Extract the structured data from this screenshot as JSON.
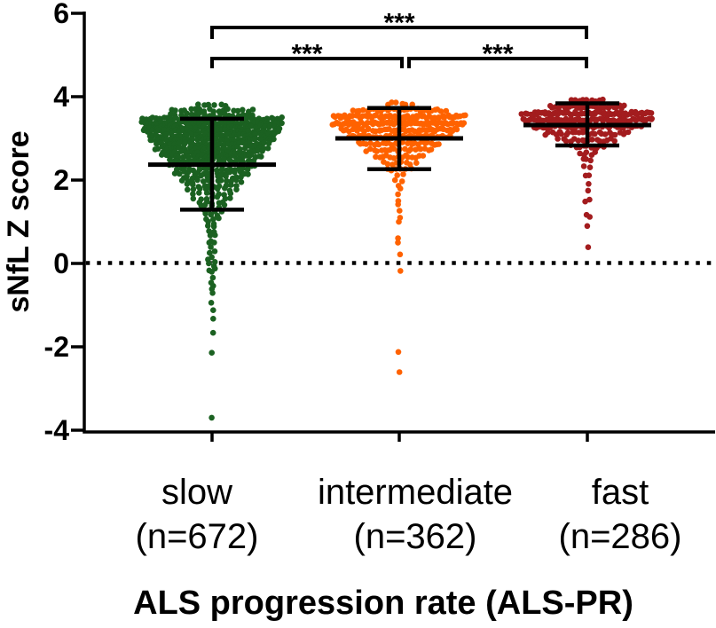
{
  "chart_data": {
    "type": "scatter",
    "subtype": "beeswarm-with-mean-sd",
    "ylabel": "sNfL Z score",
    "xlabel": "ALS progression rate (ALS-PR)",
    "ylim": [
      -4,
      6
    ],
    "yticks": [
      6,
      4,
      2,
      0,
      -2,
      -4
    ],
    "ytick_labels": [
      "6",
      "4",
      "2",
      "0",
      "-2",
      "-4"
    ],
    "zero_reference_line": {
      "value": 0,
      "style": "dotted",
      "color": "#000000"
    },
    "axis_color": "#000000",
    "errorbar_color": "#000000",
    "groups": [
      {
        "label": "slow",
        "n_label": "(n=672)",
        "n": 672,
        "color": "#1B6121",
        "stats": {
          "mean": 2.37,
          "sd_upper": 3.47,
          "sd_lower": 1.29,
          "max": 3.9,
          "min": -3.7
        },
        "bands": [
          [
            3.72,
            3.9,
            6,
            16
          ],
          [
            3.52,
            3.72,
            36,
            46
          ],
          [
            3.32,
            3.52,
            110,
            78
          ],
          [
            3.12,
            3.32,
            100,
            76
          ],
          [
            2.92,
            3.12,
            88,
            70
          ],
          [
            2.72,
            2.92,
            76,
            63
          ],
          [
            2.52,
            2.72,
            62,
            56
          ],
          [
            2.32,
            2.52,
            48,
            48
          ],
          [
            2.12,
            2.32,
            34,
            41
          ],
          [
            1.92,
            2.12,
            26,
            33
          ],
          [
            1.72,
            1.92,
            19,
            27
          ],
          [
            1.52,
            1.72,
            14,
            21
          ],
          [
            1.32,
            1.52,
            10,
            16
          ],
          [
            1.12,
            1.32,
            7,
            12
          ],
          [
            0.92,
            1.12,
            5,
            9
          ],
          [
            0.72,
            0.92,
            4,
            8
          ],
          [
            0.52,
            0.72,
            3,
            6
          ],
          [
            0.32,
            0.52,
            3,
            5
          ],
          [
            0.12,
            0.32,
            3,
            5
          ],
          [
            -0.08,
            0.12,
            4,
            5
          ],
          [
            -0.28,
            -0.08,
            3,
            4
          ],
          [
            -0.48,
            -0.28,
            2,
            4
          ],
          [
            -0.68,
            -0.48,
            2,
            3
          ],
          [
            -0.88,
            -0.68,
            1,
            2
          ],
          [
            -1.08,
            -0.88,
            1,
            2
          ],
          [
            -1.28,
            -1.08,
            1,
            2
          ],
          [
            -1.5,
            -1.3,
            1,
            2
          ],
          [
            -1.75,
            -1.6,
            1,
            1
          ],
          [
            -2.2,
            -2.1,
            1,
            1
          ],
          [
            -3.72,
            -3.68,
            1,
            0
          ]
        ]
      },
      {
        "label": "intermediate",
        "n_label": "(n=362)",
        "n": 362,
        "color": "#FF6200",
        "stats": {
          "mean": 3.0,
          "sd_upper": 3.73,
          "sd_lower": 2.26,
          "max": 3.9,
          "min": -2.65
        },
        "bands": [
          [
            3.76,
            3.9,
            6,
            14
          ],
          [
            3.6,
            3.76,
            28,
            52
          ],
          [
            3.44,
            3.6,
            68,
            74
          ],
          [
            3.28,
            3.44,
            72,
            74
          ],
          [
            3.12,
            3.28,
            54,
            66
          ],
          [
            2.96,
            3.12,
            40,
            56
          ],
          [
            2.8,
            2.96,
            28,
            46
          ],
          [
            2.64,
            2.8,
            20,
            36
          ],
          [
            2.48,
            2.64,
            14,
            27
          ],
          [
            2.32,
            2.48,
            8,
            19
          ],
          [
            2.16,
            2.32,
            6,
            13
          ],
          [
            1.95,
            2.16,
            4,
            7
          ],
          [
            1.6,
            1.95,
            3,
            4
          ],
          [
            1.2,
            1.6,
            3,
            3
          ],
          [
            0.8,
            1.2,
            2,
            2
          ],
          [
            0.45,
            0.7,
            2,
            2
          ],
          [
            0.15,
            0.3,
            1,
            0
          ],
          [
            -0.2,
            -0.15,
            1,
            0
          ],
          [
            -2.12,
            -2.08,
            1,
            0
          ],
          [
            -2.66,
            -2.62,
            1,
            0
          ]
        ]
      },
      {
        "label": "fast",
        "n_label": "(n=286)",
        "n": 286,
        "color": "#A31C1E",
        "stats": {
          "mean": 3.32,
          "sd_upper": 3.84,
          "sd_lower": 2.83,
          "max": 3.98,
          "min": 0.42
        },
        "bands": [
          [
            3.84,
            3.98,
            9,
            17
          ],
          [
            3.68,
            3.84,
            28,
            42
          ],
          [
            3.52,
            3.68,
            66,
            73
          ],
          [
            3.36,
            3.52,
            68,
            73
          ],
          [
            3.2,
            3.36,
            44,
            60
          ],
          [
            3.04,
            3.2,
            26,
            47
          ],
          [
            2.88,
            3.04,
            16,
            32
          ],
          [
            2.72,
            2.88,
            9,
            18
          ],
          [
            2.56,
            2.72,
            5,
            9
          ],
          [
            2.4,
            2.56,
            3,
            5
          ],
          [
            2.24,
            2.4,
            2,
            3
          ],
          [
            2.05,
            2.2,
            2,
            2
          ],
          [
            1.85,
            1.95,
            1,
            0
          ],
          [
            1.7,
            1.8,
            1,
            0
          ],
          [
            1.45,
            1.55,
            2,
            2
          ],
          [
            1.1,
            1.2,
            2,
            2
          ],
          [
            0.85,
            0.95,
            1,
            0
          ],
          [
            0.4,
            0.45,
            1,
            0
          ]
        ]
      }
    ],
    "comparisons": [
      {
        "from": "slow",
        "to": "intermediate",
        "label": "***"
      },
      {
        "from": "intermediate",
        "to": "fast",
        "label": "***"
      },
      {
        "from": "slow",
        "to": "fast",
        "label": "***"
      }
    ]
  }
}
